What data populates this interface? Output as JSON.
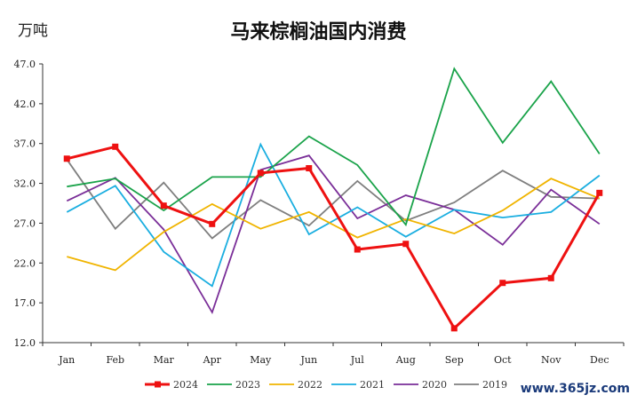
{
  "chart_data": {
    "type": "line",
    "title": "马来棕榈油国内消费",
    "unit": "万吨",
    "categories": [
      "Jan",
      "Feb",
      "Mar",
      "Apr",
      "May",
      "Jun",
      "Jul",
      "Aug",
      "Sep",
      "Oct",
      "Nov",
      "Dec"
    ],
    "ylim": [
      12.0,
      47.0
    ],
    "yticks": [
      "12.0",
      "17.0",
      "22.0",
      "27.0",
      "32.0",
      "37.0",
      "42.0",
      "47.0"
    ],
    "grid": false,
    "legend_position": "bottom",
    "series": [
      {
        "name": "2024",
        "color": "#ee1111",
        "values": [
          35.1,
          36.6,
          29.2,
          26.9,
          33.3,
          33.9,
          23.7,
          24.4,
          13.8,
          19.5,
          20.1,
          30.8
        ]
      },
      {
        "name": "2023",
        "color": "#1aa34a",
        "values": [
          31.6,
          32.6,
          28.6,
          32.8,
          32.8,
          37.9,
          34.3,
          26.8,
          46.4,
          37.1,
          44.8,
          35.7
        ]
      },
      {
        "name": "2022",
        "color": "#f0b400",
        "values": [
          22.8,
          21.1,
          25.9,
          29.4,
          26.3,
          28.4,
          25.2,
          27.5,
          25.7,
          28.6,
          32.6,
          30.1
        ]
      },
      {
        "name": "2021",
        "color": "#1aaee0",
        "values": [
          28.4,
          31.7,
          23.4,
          19.1,
          36.9,
          25.6,
          29.0,
          25.3,
          28.7,
          27.7,
          28.4,
          33.0
        ]
      },
      {
        "name": "2020",
        "color": "#7a2e98",
        "values": [
          29.8,
          32.7,
          26.2,
          15.8,
          33.7,
          35.5,
          27.6,
          30.5,
          28.7,
          24.3,
          31.2,
          26.9
        ]
      },
      {
        "name": "2019",
        "color": "#7f7f7f",
        "values": [
          35.0,
          26.3,
          32.1,
          25.1,
          29.9,
          26.7,
          32.3,
          27.3,
          29.6,
          33.6,
          30.3,
          30.1
        ]
      }
    ]
  },
  "watermark": "www.365jz.com"
}
